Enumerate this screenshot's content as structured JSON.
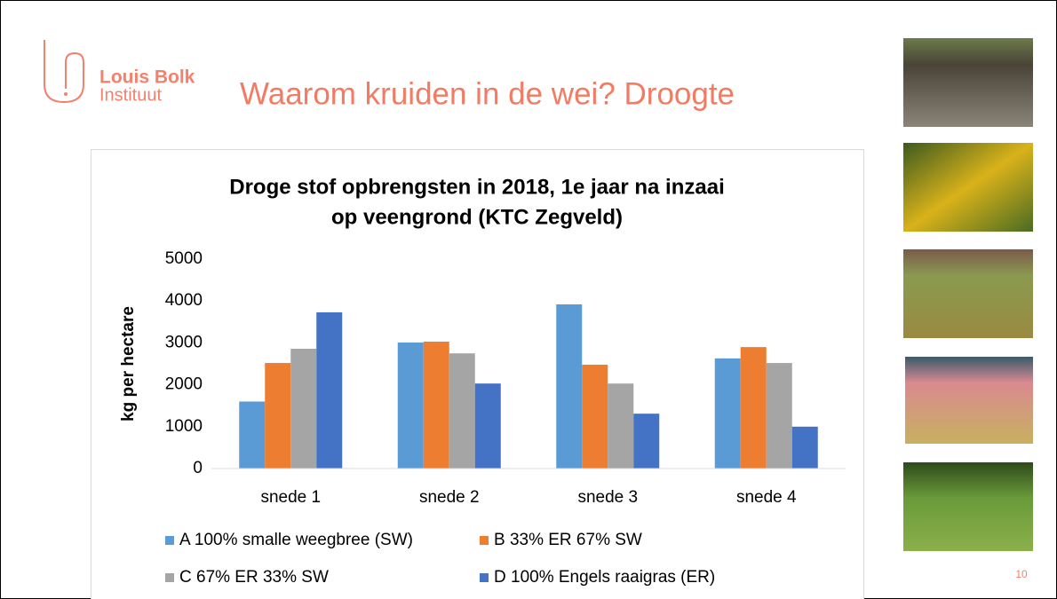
{
  "slide": {
    "logo_line1": "Louis Bolk",
    "logo_line2": "Instituut",
    "heading": "Waarom kruiden in de wei? Droogte",
    "page_number": "10"
  },
  "chart_data": {
    "type": "bar",
    "title": [
      "Droge stof opbrengsten in 2018, 1e jaar na inzaai",
      "op veengrond (KTC Zegveld)"
    ],
    "ylabel": "kg per hectare",
    "categories": [
      "snede 1",
      "snede 2",
      "snede 3",
      "snede 4"
    ],
    "series": [
      {
        "name": "A 100% smalle weegbree (SW)",
        "color": "#5b9bd5",
        "values": [
          1600,
          3010,
          3920,
          2630
        ]
      },
      {
        "name": "B 33% ER 67% SW",
        "color": "#ed7d31",
        "values": [
          2520,
          3030,
          2480,
          2900
        ]
      },
      {
        "name": "C 67% ER 33% SW",
        "color": "#a5a5a5",
        "values": [
          2860,
          2750,
          2030,
          2520
        ]
      },
      {
        "name": "D 100% Engels raaigras (ER)",
        "color": "#4472c4",
        "values": [
          3730,
          2030,
          1310,
          1000
        ]
      }
    ],
    "ylim": [
      0,
      5000
    ],
    "yticks": [
      0,
      1000,
      2000,
      3000,
      4000,
      5000
    ],
    "grid": false
  }
}
